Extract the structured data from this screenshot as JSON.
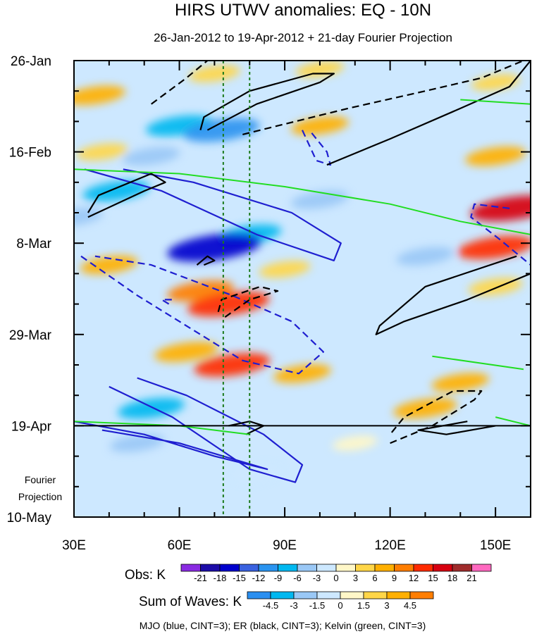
{
  "chart_data": {
    "type": "heatmap",
    "title": "HIRS UTWV anomalies: EQ - 10N",
    "subtitle": "26-Jan-2012 to 19-Apr-2012 + 21-day Fourier Projection",
    "x_axis": {
      "range": [
        30,
        160
      ],
      "ticks": [
        30,
        60,
        90,
        120,
        150
      ],
      "tick_labels": [
        "30E",
        "60E",
        "90E",
        "120E",
        "150E"
      ]
    },
    "y_axis": {
      "range_days": [
        0,
        105
      ],
      "ticks_days": [
        0,
        21,
        42,
        63,
        84,
        105
      ],
      "tick_labels": [
        "26-Jan",
        "16-Feb",
        "8-Mar",
        "29-Mar",
        "19-Apr",
        "10-May"
      ],
      "direction": "downward"
    },
    "observation_end_day": 84,
    "fourier_projection_label": [
      "Fourier",
      "Projection"
    ],
    "reference_longitudes": [
      72.5,
      80
    ],
    "obs_colorbar": {
      "label": "Obs: K",
      "levels": [
        "-21",
        "-18",
        "-15",
        "-12",
        "-9",
        "-6",
        "-3",
        "0",
        "3",
        "6",
        "9",
        "12",
        "15",
        "18",
        "21"
      ],
      "colors": [
        "#8a2be2",
        "#1c0ca8",
        "#0000cd",
        "#3a62e0",
        "#2a94f0",
        "#00b8f0",
        "#9ac8f6",
        "#cde8ff",
        "#fff7c8",
        "#ffd648",
        "#ffb000",
        "#ff7e00",
        "#ff2b00",
        "#d70010",
        "#a02c2c",
        "#ff69c0"
      ]
    },
    "waves_colorbar": {
      "label": "Sum of Waves: K",
      "levels": [
        "-4.5",
        "-3",
        "-1.5",
        "0",
        "1.5",
        "3",
        "4.5"
      ],
      "colors": [
        "#2a8ff0",
        "#00b8f0",
        "#9ac8f6",
        "#cde8ff",
        "#fff7c8",
        "#ffd648",
        "#ffb000",
        "#ff7e00"
      ]
    },
    "contour_note": "MJO (blue, CINT=3); ER (black, CINT=3); Kelvin (green, CINT=3)",
    "anomaly_regions": [
      {
        "lon": 36,
        "day": 8,
        "value": 7
      },
      {
        "lon": 70,
        "day": 3,
        "value": 4
      },
      {
        "lon": 100,
        "day": 15,
        "value": 6
      },
      {
        "lon": 100,
        "day": 2,
        "value": 3
      },
      {
        "lon": 150,
        "day": 5,
        "value": 3
      },
      {
        "lon": 38,
        "day": 21,
        "value": 4
      },
      {
        "lon": 150,
        "day": 22,
        "value": 7
      },
      {
        "lon": 155,
        "day": 34,
        "value": 15
      },
      {
        "lon": 150,
        "day": 43,
        "value": 12
      },
      {
        "lon": 40,
        "day": 47,
        "value": 6
      },
      {
        "lon": 66,
        "day": 53,
        "value": 9
      },
      {
        "lon": 74,
        "day": 56,
        "value": 14
      },
      {
        "lon": 90,
        "day": 48,
        "value": 4
      },
      {
        "lon": 62,
        "day": 67,
        "value": 8
      },
      {
        "lon": 75,
        "day": 70,
        "value": 12
      },
      {
        "lon": 95,
        "day": 72,
        "value": 6
      },
      {
        "lon": 150,
        "day": 52,
        "value": 5
      },
      {
        "lon": 140,
        "day": 74,
        "value": 6
      },
      {
        "lon": 130,
        "day": 80,
        "value": 8
      },
      {
        "lon": 110,
        "day": 88,
        "value": 2
      },
      {
        "lon": 60,
        "day": 15,
        "value": -9
      },
      {
        "lon": 72,
        "day": 16,
        "value": -12
      },
      {
        "lon": 52,
        "day": 22,
        "value": -6
      },
      {
        "lon": 42,
        "day": 30,
        "value": -9
      },
      {
        "lon": 80,
        "day": 40,
        "value": -8
      },
      {
        "lon": 70,
        "day": 43,
        "value": -18
      },
      {
        "lon": 100,
        "day": 32,
        "value": -6
      },
      {
        "lon": 130,
        "day": 45,
        "value": -6
      },
      {
        "lon": 52,
        "day": 80,
        "value": -9
      },
      {
        "lon": 48,
        "day": 88,
        "value": -5
      },
      {
        "lon": 82,
        "day": 95,
        "value": -3
      },
      {
        "lon": 30,
        "day": 36,
        "value": -6
      }
    ],
    "contours": [
      {
        "wave": "MJO",
        "sign": "positive",
        "color": "#1f1fd0",
        "points": [
          [
            33,
            25
          ],
          [
            55,
            30
          ],
          [
            82,
            40
          ],
          [
            104,
            46
          ],
          [
            106,
            42
          ],
          [
            92,
            35
          ],
          [
            64,
            28
          ],
          [
            44,
            25
          ]
        ]
      },
      {
        "wave": "MJO",
        "sign": "positive",
        "color": "#1f1fd0",
        "points": [
          [
            40,
            75
          ],
          [
            58,
            82
          ],
          [
            80,
            94
          ],
          [
            93,
            97
          ],
          [
            95,
            93
          ],
          [
            84,
            86
          ],
          [
            62,
            77
          ],
          [
            48,
            73
          ]
        ]
      },
      {
        "wave": "MJO",
        "sign": "positive",
        "color": "#1f1fd0",
        "points": [
          [
            30,
            83
          ],
          [
            50,
            86
          ],
          [
            70,
            91
          ],
          [
            85,
            94
          ],
          [
            60,
            88
          ],
          [
            38,
            85
          ]
        ]
      },
      {
        "wave": "MJO",
        "sign": "negative",
        "color": "#1f1fd0",
        "points": [
          [
            32,
            45
          ],
          [
            48,
            54
          ],
          [
            66,
            63
          ],
          [
            78,
            69
          ],
          [
            94,
            72
          ],
          [
            101,
            67
          ],
          [
            92,
            60
          ],
          [
            75,
            54
          ],
          [
            52,
            47
          ],
          [
            36,
            45
          ]
        ]
      },
      {
        "wave": "MJO",
        "sign": "negative",
        "color": "#1f1fd0",
        "points": [
          [
            154,
            34
          ],
          [
            144,
            33
          ],
          [
            143,
            36
          ],
          [
            151,
            41
          ],
          [
            160,
            47
          ]
        ]
      },
      {
        "wave": "MJO",
        "sign": "negative",
        "color": "#1f1fd0",
        "points": [
          [
            95,
            16
          ],
          [
            99,
            23
          ],
          [
            103,
            24
          ],
          [
            102,
            21
          ],
          [
            97,
            16
          ]
        ]
      },
      {
        "wave": "MJO",
        "sign": "negative",
        "color": "#1f1fd0",
        "points": [
          [
            57,
            56
          ],
          [
            55,
            55
          ],
          [
            58,
            55
          ]
        ]
      },
      {
        "wave": "ER",
        "sign": "positive",
        "color": "#000000",
        "points": [
          [
            68,
            16
          ],
          [
            82,
            10
          ],
          [
            100,
            5
          ],
          [
            104,
            3
          ],
          [
            98,
            3
          ],
          [
            80,
            7
          ],
          [
            67,
            13
          ],
          [
            66,
            16
          ]
        ]
      },
      {
        "wave": "ER",
        "sign": "positive",
        "color": "#000000",
        "points": [
          [
            102,
            24
          ],
          [
            120,
            18
          ],
          [
            140,
            11
          ],
          [
            154,
            6
          ],
          [
            160,
            0
          ]
        ]
      },
      {
        "wave": "ER",
        "sign": "positive",
        "color": "#000000",
        "points": [
          [
            34,
            36
          ],
          [
            50,
            30
          ],
          [
            56,
            28
          ],
          [
            52,
            26
          ],
          [
            37,
            31
          ],
          [
            34,
            35
          ]
        ]
      },
      {
        "wave": "ER",
        "sign": "positive",
        "color": "#000000",
        "points": [
          [
            156,
            45
          ],
          [
            130,
            52
          ],
          [
            117,
            61
          ],
          [
            116,
            63
          ],
          [
            124,
            60
          ],
          [
            142,
            55
          ],
          [
            160,
            49
          ]
        ]
      },
      {
        "wave": "ER",
        "sign": "positive",
        "color": "#000000",
        "points": [
          [
            65,
            47
          ],
          [
            68,
            45
          ],
          [
            70,
            46
          ],
          [
            67,
            47
          ]
        ]
      },
      {
        "wave": "ER",
        "sign": "positive",
        "color": "#000000",
        "points": [
          [
            74,
            84
          ],
          [
            80,
            83
          ],
          [
            84,
            84
          ],
          [
            79,
            86
          ]
        ]
      },
      {
        "wave": "ER",
        "sign": "positive",
        "color": "#000000",
        "points": [
          [
            150,
            84
          ],
          [
            136,
            86
          ],
          [
            128,
            85
          ],
          [
            142,
            83
          ]
        ]
      },
      {
        "wave": "ER",
        "sign": "negative",
        "color": "#000000",
        "points": [
          [
            52,
            10
          ],
          [
            62,
            4
          ],
          [
            68,
            0
          ]
        ]
      },
      {
        "wave": "ER",
        "sign": "negative",
        "color": "#000000",
        "points": [
          [
            78,
            17
          ],
          [
            108,
            11
          ],
          [
            130,
            7
          ],
          [
            146,
            4
          ],
          [
            158,
            0
          ]
        ]
      },
      {
        "wave": "ER",
        "sign": "negative",
        "color": "#000000",
        "points": [
          [
            73,
            59
          ],
          [
            80,
            55
          ],
          [
            88,
            53
          ],
          [
            83,
            52
          ],
          [
            72,
            55
          ],
          [
            71,
            58
          ]
        ]
      },
      {
        "wave": "ER",
        "sign": "negative",
        "color": "#000000",
        "points": [
          [
            120,
            88
          ],
          [
            132,
            84
          ],
          [
            144,
            78
          ],
          [
            146,
            76
          ],
          [
            138,
            76
          ],
          [
            124,
            82
          ],
          [
            120,
            86
          ]
        ]
      },
      {
        "wave": "Kelvin",
        "sign": "positive",
        "color": "#22dd22",
        "points": [
          [
            30,
            25
          ],
          [
            60,
            26
          ],
          [
            90,
            29
          ],
          [
            120,
            33
          ],
          [
            140,
            37
          ],
          [
            160,
            40
          ]
        ]
      },
      {
        "wave": "Kelvin",
        "sign": "positive",
        "color": "#22dd22",
        "points": [
          [
            30,
            83
          ],
          [
            60,
            84
          ],
          [
            80,
            86
          ]
        ]
      },
      {
        "wave": "Kelvin",
        "sign": "positive",
        "color": "#22dd22",
        "points": [
          [
            140,
            9
          ],
          [
            160,
            10
          ]
        ]
      },
      {
        "wave": "Kelvin",
        "sign": "positive",
        "color": "#22dd22",
        "points": [
          [
            132,
            68
          ],
          [
            158,
            71
          ]
        ]
      },
      {
        "wave": "Kelvin",
        "sign": "positive",
        "color": "#22dd22",
        "points": [
          [
            150,
            82
          ],
          [
            160,
            84
          ]
        ]
      }
    ]
  }
}
